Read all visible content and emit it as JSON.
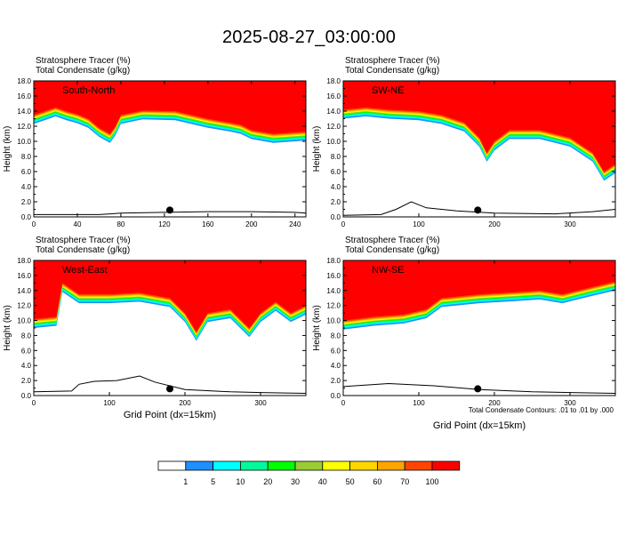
{
  "figure": {
    "title": "2025-08-27_03:00:00",
    "x_axis_label": "Grid Point (dx=15km)",
    "contour_note": "Total Condensate Contours: .01 to .01 by .000"
  },
  "chart_data": [
    {
      "type": "heatmap",
      "panel": "South-North",
      "header_lines": [
        "Stratosphere Tracer   (%)",
        "Total Condensate   (g/kg)"
      ],
      "ylabel": "Height (km)",
      "xlim": [
        0,
        250
      ],
      "ylim": [
        0,
        18
      ],
      "x_ticks": [
        "0",
        "40",
        "80",
        "120",
        "160",
        "200",
        "240"
      ],
      "y_ticks": [
        "0.0",
        "2.0",
        "4.0",
        "6.0",
        "8.0",
        "10.0",
        "12.0",
        "14.0",
        "16.0",
        "18.0"
      ],
      "x_tick_values": [
        0,
        40,
        80,
        120,
        160,
        200,
        240
      ],
      "tropopause_km": [
        [
          0,
          13.5
        ],
        [
          10,
          14.0
        ],
        [
          20,
          14.5
        ],
        [
          30,
          14.0
        ],
        [
          40,
          13.6
        ],
        [
          50,
          13.0
        ],
        [
          60,
          11.8
        ],
        [
          70,
          11.0
        ],
        [
          75,
          12.0
        ],
        [
          80,
          13.5
        ],
        [
          100,
          14.1
        ],
        [
          130,
          14.0
        ],
        [
          160,
          13.0
        ],
        [
          180,
          12.5
        ],
        [
          190,
          12.2
        ],
        [
          200,
          11.5
        ],
        [
          220,
          11.0
        ],
        [
          240,
          11.2
        ],
        [
          250,
          11.3
        ]
      ],
      "marker_x": 125,
      "terrain_km": [
        [
          0,
          0.3
        ],
        [
          60,
          0.3
        ],
        [
          80,
          0.5
        ],
        [
          120,
          0.6
        ],
        [
          160,
          0.7
        ],
        [
          200,
          0.7
        ],
        [
          240,
          0.6
        ],
        [
          250,
          0.5
        ]
      ]
    },
    {
      "type": "heatmap",
      "panel": "SW-NE",
      "header_lines": [
        "Stratosphere Tracer   (%)",
        "Total Condensate   (g/kg)"
      ],
      "ylabel": "Height (km)",
      "xlim": [
        0,
        360
      ],
      "ylim": [
        0,
        18
      ],
      "x_ticks": [
        "0",
        "100",
        "200",
        "300"
      ],
      "y_ticks": [
        "0.0",
        "2.0",
        "4.0",
        "6.0",
        "8.0",
        "10.0",
        "12.0",
        "14.0",
        "16.0",
        "18.0"
      ],
      "x_tick_values": [
        0,
        100,
        200,
        300
      ],
      "tropopause_km": [
        [
          0,
          14.2
        ],
        [
          30,
          14.5
        ],
        [
          60,
          14.2
        ],
        [
          100,
          14.0
        ],
        [
          130,
          13.5
        ],
        [
          160,
          12.5
        ],
        [
          180,
          10.5
        ],
        [
          190,
          8.5
        ],
        [
          200,
          10.0
        ],
        [
          220,
          11.5
        ],
        [
          260,
          11.5
        ],
        [
          300,
          10.5
        ],
        [
          330,
          8.5
        ],
        [
          345,
          6.0
        ],
        [
          360,
          7.0
        ]
      ],
      "marker_x": 178,
      "terrain_km": [
        [
          0,
          0.2
        ],
        [
          50,
          0.3
        ],
        [
          70,
          1.0
        ],
        [
          90,
          2.0
        ],
        [
          110,
          1.2
        ],
        [
          150,
          0.8
        ],
        [
          200,
          0.5
        ],
        [
          280,
          0.4
        ],
        [
          330,
          0.7
        ],
        [
          360,
          1.0
        ]
      ]
    },
    {
      "type": "heatmap",
      "panel": "West-East",
      "header_lines": [
        "Stratosphere Tracer   (%)",
        "Total Condensate   (g/kg)"
      ],
      "ylabel": "Height (km)",
      "xlim": [
        0,
        360
      ],
      "ylim": [
        0,
        18
      ],
      "x_ticks": [
        "0",
        "100",
        "200",
        "300"
      ],
      "y_ticks": [
        "0.0",
        "2.0",
        "4.0",
        "6.0",
        "8.0",
        "10.0",
        "12.0",
        "14.0",
        "16.0",
        "18.0"
      ],
      "x_tick_values": [
        0,
        100,
        200,
        300
      ],
      "tropopause_km": [
        [
          0,
          10.2
        ],
        [
          30,
          10.5
        ],
        [
          38,
          15.0
        ],
        [
          60,
          13.5
        ],
        [
          100,
          13.5
        ],
        [
          140,
          13.7
        ],
        [
          180,
          13.0
        ],
        [
          200,
          11.0
        ],
        [
          215,
          8.5
        ],
        [
          230,
          11.0
        ],
        [
          260,
          11.5
        ],
        [
          285,
          9.0
        ],
        [
          300,
          11.0
        ],
        [
          320,
          12.5
        ],
        [
          340,
          11.0
        ],
        [
          360,
          12.0
        ]
      ],
      "marker_x": 180,
      "terrain_km": [
        [
          0,
          0.5
        ],
        [
          50,
          0.6
        ],
        [
          60,
          1.5
        ],
        [
          80,
          1.9
        ],
        [
          110,
          2.0
        ],
        [
          140,
          2.6
        ],
        [
          160,
          1.8
        ],
        [
          200,
          0.8
        ],
        [
          260,
          0.5
        ],
        [
          300,
          0.4
        ],
        [
          360,
          0.3
        ]
      ]
    },
    {
      "type": "heatmap",
      "panel": "NW-SE",
      "header_lines": [
        "Stratosphere Tracer   (%)",
        "Total Condensate   (g/kg)"
      ],
      "ylabel": "Height (km)",
      "xlim": [
        0,
        360
      ],
      "ylim": [
        0,
        18
      ],
      "x_ticks": [
        "0",
        "100",
        "200",
        "300"
      ],
      "y_ticks": [
        "0.0",
        "2.0",
        "4.0",
        "6.0",
        "8.0",
        "10.0",
        "12.0",
        "14.0",
        "16.0",
        "18.0"
      ],
      "x_tick_values": [
        0,
        100,
        200,
        300
      ],
      "tropopause_km": [
        [
          0,
          10.0
        ],
        [
          40,
          10.5
        ],
        [
          80,
          10.8
        ],
        [
          110,
          11.5
        ],
        [
          130,
          13.0
        ],
        [
          180,
          13.5
        ],
        [
          230,
          13.8
        ],
        [
          260,
          14.0
        ],
        [
          290,
          13.5
        ],
        [
          310,
          14.0
        ],
        [
          330,
          14.5
        ],
        [
          360,
          15.2
        ]
      ],
      "marker_x": 178,
      "terrain_km": [
        [
          0,
          1.2
        ],
        [
          60,
          1.6
        ],
        [
          120,
          1.3
        ],
        [
          180,
          0.8
        ],
        [
          250,
          0.5
        ],
        [
          300,
          0.4
        ],
        [
          360,
          0.3
        ]
      ]
    }
  ],
  "colorbar": {
    "colors": [
      "#ffffff",
      "#1e90ff",
      "#00ffff",
      "#00fa9a",
      "#00ff00",
      "#9acd32",
      "#ffff00",
      "#ffd700",
      "#ffa500",
      "#ff4500",
      "#ff0000"
    ],
    "labels": [
      "1",
      "5",
      "10",
      "20",
      "30",
      "40",
      "50",
      "60",
      "70",
      "100"
    ]
  }
}
